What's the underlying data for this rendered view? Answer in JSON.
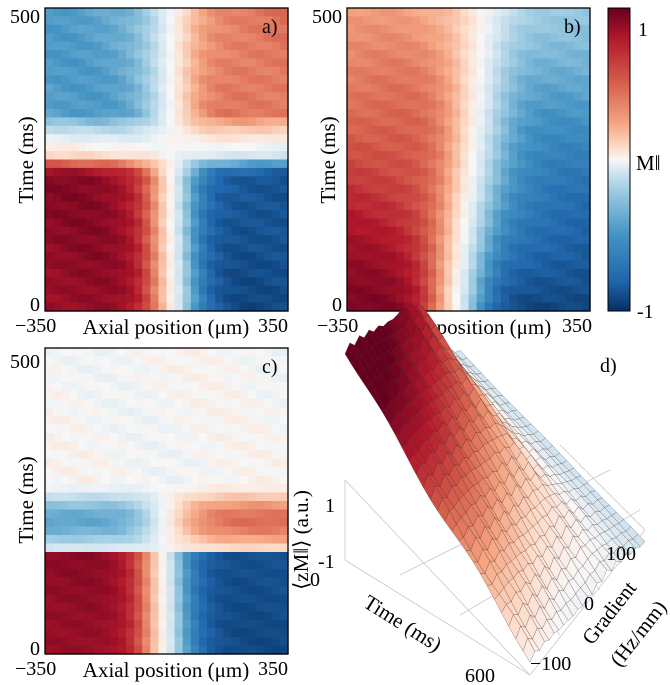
{
  "chart_data": [
    {
      "type": "heatmap",
      "panel_label": "a)",
      "xlabel": "Axial position (μm)",
      "ylabel": "Time (ms)",
      "x_ticks": [
        "−350",
        "350"
      ],
      "y_ticks": [
        "500",
        "0"
      ],
      "xlim": [
        -350,
        350
      ],
      "ylim": [
        0,
        500
      ],
      "colormap": "blue-white-red",
      "clim": [
        -1,
        1
      ],
      "pattern": "red left / blue right at early times (0-200 ms), inverting to blue left / red right at late times (350-500 ms)"
    },
    {
      "type": "heatmap",
      "panel_label": "b)",
      "xlabel": "Axial position (μm)",
      "ylabel": "Time (ms)",
      "x_ticks": [
        "−350",
        "350"
      ],
      "y_ticks": [
        "500",
        "0"
      ],
      "xlim": [
        -350,
        350
      ],
      "ylim": [
        0,
        500
      ],
      "colormap": "blue-white-red",
      "clim": [
        -1,
        1
      ],
      "pattern": "red left / blue right persisting for all times, fading toward the top"
    },
    {
      "type": "heatmap",
      "panel_label": "c)",
      "xlabel": "Axial position (μm)",
      "ylabel": "Time (ms)",
      "x_ticks": [
        "−350",
        "350"
      ],
      "y_ticks": [
        "500",
        "0"
      ],
      "xlim": [
        -350,
        350
      ],
      "ylim": [
        0,
        500
      ],
      "colormap": "blue-white-red",
      "clim": [
        -1,
        1
      ],
      "pattern": "red left / blue right at early times, blue left / red right at 150-250 ms, near zero afterwards"
    },
    {
      "type": "surface",
      "panel_label": "d)",
      "zlabel": "⟨zM‖⟩ (a.u.)",
      "xlabel": "Time (ms)",
      "ylabel_line1": "Gradient",
      "ylabel_line2": "(Hz/mm)",
      "z_ticks": [
        "1",
        "-1"
      ],
      "time_ticks": [
        "0",
        "600"
      ],
      "gradient_ticks": [
        "100",
        "0",
        "−100"
      ],
      "xlim": [
        0,
        600
      ],
      "ylim": [
        -100,
        100
      ],
      "zlim": [
        -1,
        1
      ]
    }
  ],
  "colorbar": {
    "label": "M‖",
    "ticks": [
      "1",
      "-1"
    ],
    "colors": [
      "#67001f",
      "#b2182b",
      "#d6604d",
      "#f4a582",
      "#fddbc7",
      "#f7f7f7",
      "#d1e5f0",
      "#92c5de",
      "#4393c3",
      "#2166ac",
      "#053061"
    ]
  }
}
